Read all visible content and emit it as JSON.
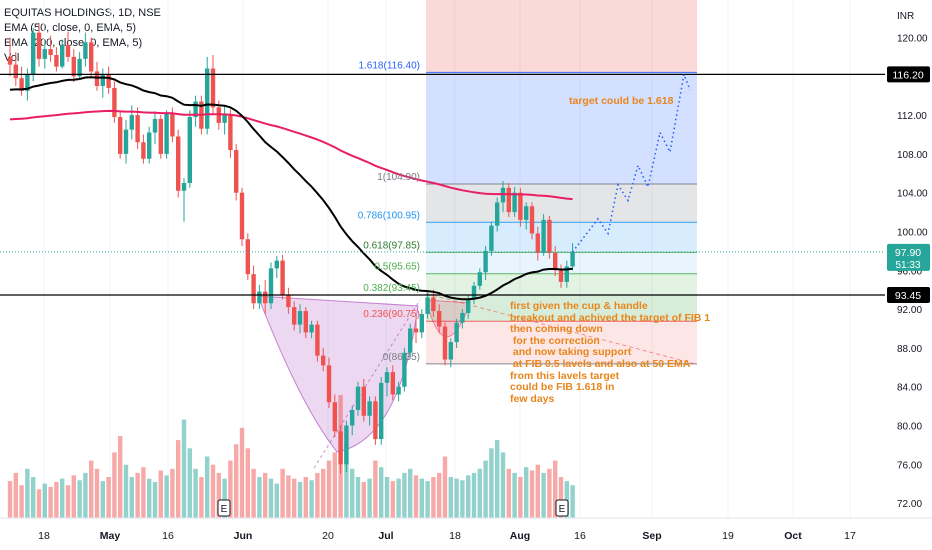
{
  "legend": {
    "symbol": "EQUITAS HOLDINGS, 1D, NSE",
    "ema50": "EMA (50, close, 0, EMA, 5)",
    "ema200": "EMA (200, close, 0, EMA, 5)",
    "vol": "Vol"
  },
  "axis": {
    "currency": "INR",
    "y_ticks": [
      "120.00",
      "116.00",
      "112.00",
      "108.00",
      "104.00",
      "100.00",
      "96.00",
      "92.00",
      "88.00",
      "84.00",
      "80.00",
      "76.00",
      "72.00"
    ],
    "x_ticks": [
      "18",
      "May",
      "16",
      "Jun",
      "20",
      "Jul",
      "18",
      "Aug",
      "16",
      "Sep",
      "19",
      "Oct",
      "17"
    ]
  },
  "price_tags": {
    "resistance": "116.20",
    "last": "97.90",
    "countdown": "51:33",
    "support": "93.45"
  },
  "fib_labels": {
    "f1618": "1.618(116.40)",
    "f1": "1(104.90)",
    "f786": "0.786(100.95)",
    "f618": "0.618(97.85)",
    "f5": "0.5(95.65)",
    "f382": "0.382(93.45)",
    "f236": "0.236(90.75)",
    "f0": "0(86.35)"
  },
  "annotations": {
    "target": "target could be 1.618",
    "note_lines": [
      "first given the cup & handle",
      "breakout and achived the target of FIB 1",
      "then coming down",
      " for the correction",
      " and now taking support",
      " at FIB 0.5 lavels and also at 50 EMA",
      "from this lavels target",
      "could be FIB 1.618 in",
      "few days"
    ]
  },
  "earnings_marker": "E",
  "colors": {
    "up": "#26a69a",
    "down": "#ef5350",
    "ema50": "#000000",
    "ema200": "#e91e63",
    "annotation": "#e8851b",
    "last_price": "#26a69a"
  },
  "chart_data": {
    "type": "candlestick",
    "title": "EQUITAS HOLDINGS, 1D, NSE",
    "ylabel": "INR",
    "ylim": [
      70.5,
      122.5
    ],
    "horizontal_lines": [
      116.2,
      93.45
    ],
    "fibonacci": {
      "levels": [
        {
          "ratio": 1.618,
          "price": 116.4
        },
        {
          "ratio": 1,
          "price": 104.9
        },
        {
          "ratio": 0.786,
          "price": 100.95
        },
        {
          "ratio": 0.618,
          "price": 97.85
        },
        {
          "ratio": 0.5,
          "price": 95.65
        },
        {
          "ratio": 0.382,
          "price": 93.45
        },
        {
          "ratio": 0.236,
          "price": 90.75
        },
        {
          "ratio": 0,
          "price": 86.35
        }
      ]
    },
    "last_price": 97.9,
    "candles": [
      {
        "o": 118.0,
        "h": 120.0,
        "l": 116.0,
        "c": 117.2
      },
      {
        "o": 117.2,
        "h": 118.5,
        "l": 115.0,
        "c": 115.8
      },
      {
        "o": 115.8,
        "h": 117.0,
        "l": 114.0,
        "c": 114.5
      },
      {
        "o": 114.5,
        "h": 116.8,
        "l": 113.5,
        "c": 116.2
      },
      {
        "o": 116.2,
        "h": 121.0,
        "l": 115.5,
        "c": 120.5
      },
      {
        "o": 120.5,
        "h": 121.5,
        "l": 117.0,
        "c": 117.8
      },
      {
        "o": 117.8,
        "h": 119.5,
        "l": 116.8,
        "c": 118.8
      },
      {
        "o": 118.8,
        "h": 120.2,
        "l": 117.5,
        "c": 118.2
      },
      {
        "o": 118.2,
        "h": 119.0,
        "l": 116.5,
        "c": 117.0
      },
      {
        "o": 117.0,
        "h": 119.8,
        "l": 116.8,
        "c": 119.2
      },
      {
        "o": 119.2,
        "h": 120.6,
        "l": 117.5,
        "c": 118.0
      },
      {
        "o": 118.0,
        "h": 118.8,
        "l": 115.4,
        "c": 116.0
      },
      {
        "o": 116.0,
        "h": 118.5,
        "l": 115.8,
        "c": 117.8
      },
      {
        "o": 117.8,
        "h": 120.5,
        "l": 117.0,
        "c": 119.5
      },
      {
        "o": 119.5,
        "h": 120.0,
        "l": 116.0,
        "c": 116.5
      },
      {
        "o": 116.5,
        "h": 117.5,
        "l": 114.5,
        "c": 115.0
      },
      {
        "o": 115.0,
        "h": 116.8,
        "l": 113.8,
        "c": 116.2
      },
      {
        "o": 116.2,
        "h": 117.0,
        "l": 114.2,
        "c": 114.8
      },
      {
        "o": 114.8,
        "h": 115.5,
        "l": 111.2,
        "c": 111.8
      },
      {
        "o": 111.8,
        "h": 112.5,
        "l": 107.5,
        "c": 108.0
      },
      {
        "o": 108.0,
        "h": 111.5,
        "l": 107.0,
        "c": 110.5
      },
      {
        "o": 110.5,
        "h": 113.0,
        "l": 109.5,
        "c": 112.0
      },
      {
        "o": 112.0,
        "h": 112.8,
        "l": 108.5,
        "c": 109.2
      },
      {
        "o": 109.2,
        "h": 110.0,
        "l": 107.0,
        "c": 107.5
      },
      {
        "o": 107.5,
        "h": 110.8,
        "l": 107.0,
        "c": 110.2
      },
      {
        "o": 110.2,
        "h": 112.4,
        "l": 109.0,
        "c": 111.6
      },
      {
        "o": 111.6,
        "h": 112.0,
        "l": 107.5,
        "c": 108.0
      },
      {
        "o": 108.0,
        "h": 112.5,
        "l": 107.5,
        "c": 112.2
      },
      {
        "o": 112.2,
        "h": 112.8,
        "l": 109.2,
        "c": 109.8
      },
      {
        "o": 109.8,
        "h": 110.5,
        "l": 103.5,
        "c": 104.2
      },
      {
        "o": 104.2,
        "h": 105.5,
        "l": 101.0,
        "c": 105.0
      },
      {
        "o": 105.0,
        "h": 112.5,
        "l": 104.5,
        "c": 111.8
      },
      {
        "o": 111.8,
        "h": 114.0,
        "l": 110.8,
        "c": 113.4
      },
      {
        "o": 113.4,
        "h": 114.0,
        "l": 110.0,
        "c": 110.6
      },
      {
        "o": 110.6,
        "h": 118.0,
        "l": 110.0,
        "c": 116.8
      },
      {
        "o": 116.8,
        "h": 118.2,
        "l": 112.0,
        "c": 112.8
      },
      {
        "o": 112.8,
        "h": 113.5,
        "l": 110.5,
        "c": 111.2
      },
      {
        "o": 111.2,
        "h": 113.0,
        "l": 110.0,
        "c": 112.0
      },
      {
        "o": 112.0,
        "h": 112.6,
        "l": 107.6,
        "c": 108.4
      },
      {
        "o": 108.4,
        "h": 109.0,
        "l": 103.2,
        "c": 104.0
      },
      {
        "o": 104.0,
        "h": 104.5,
        "l": 98.5,
        "c": 99.2
      },
      {
        "o": 99.2,
        "h": 99.8,
        "l": 95.0,
        "c": 95.6
      },
      {
        "o": 95.6,
        "h": 96.5,
        "l": 92.0,
        "c": 92.6
      },
      {
        "o": 92.6,
        "h": 94.5,
        "l": 92.0,
        "c": 93.8
      },
      {
        "o": 93.8,
        "h": 95.0,
        "l": 91.5,
        "c": 92.6
      },
      {
        "o": 92.6,
        "h": 96.8,
        "l": 92.0,
        "c": 96.2
      },
      {
        "o": 96.2,
        "h": 97.5,
        "l": 95.2,
        "c": 97.0
      },
      {
        "o": 97.0,
        "h": 97.6,
        "l": 93.0,
        "c": 93.4
      },
      {
        "o": 93.4,
        "h": 94.2,
        "l": 91.5,
        "c": 92.2
      },
      {
        "o": 92.2,
        "h": 92.8,
        "l": 89.8,
        "c": 90.4
      },
      {
        "o": 90.4,
        "h": 92.5,
        "l": 89.5,
        "c": 91.8
      },
      {
        "o": 91.8,
        "h": 92.2,
        "l": 89.0,
        "c": 89.6
      },
      {
        "o": 89.6,
        "h": 90.8,
        "l": 89.0,
        "c": 90.4
      },
      {
        "o": 90.4,
        "h": 90.8,
        "l": 86.6,
        "c": 87.2
      },
      {
        "o": 87.2,
        "h": 88.0,
        "l": 85.6,
        "c": 86.2
      },
      {
        "o": 86.2,
        "h": 87.0,
        "l": 81.8,
        "c": 82.4
      },
      {
        "o": 82.4,
        "h": 83.2,
        "l": 78.8,
        "c": 79.4
      },
      {
        "o": 79.4,
        "h": 80.0,
        "l": 75.0,
        "c": 76.0
      },
      {
        "o": 76.0,
        "h": 80.5,
        "l": 75.2,
        "c": 80.0
      },
      {
        "o": 80.0,
        "h": 82.0,
        "l": 79.0,
        "c": 81.6
      },
      {
        "o": 81.6,
        "h": 84.5,
        "l": 81.0,
        "c": 84.0
      },
      {
        "o": 84.0,
        "h": 84.8,
        "l": 80.4,
        "c": 81.0
      },
      {
        "o": 81.0,
        "h": 83.0,
        "l": 80.0,
        "c": 82.5
      },
      {
        "o": 82.5,
        "h": 83.0,
        "l": 78.0,
        "c": 78.6
      },
      {
        "o": 78.6,
        "h": 85.0,
        "l": 78.0,
        "c": 84.4
      },
      {
        "o": 84.4,
        "h": 86.0,
        "l": 83.0,
        "c": 85.5
      },
      {
        "o": 85.5,
        "h": 86.2,
        "l": 82.6,
        "c": 83.2
      },
      {
        "o": 83.2,
        "h": 84.5,
        "l": 82.5,
        "c": 84.0
      },
      {
        "o": 84.0,
        "h": 88.0,
        "l": 83.5,
        "c": 87.5
      },
      {
        "o": 87.5,
        "h": 90.5,
        "l": 87.0,
        "c": 90.0
      },
      {
        "o": 90.0,
        "h": 91.0,
        "l": 88.5,
        "c": 89.6
      },
      {
        "o": 89.6,
        "h": 92.0,
        "l": 89.0,
        "c": 91.5
      },
      {
        "o": 91.5,
        "h": 93.8,
        "l": 91.0,
        "c": 93.2
      },
      {
        "o": 93.2,
        "h": 94.0,
        "l": 91.2,
        "c": 91.8
      },
      {
        "o": 91.8,
        "h": 92.5,
        "l": 89.5,
        "c": 90.2
      },
      {
        "o": 90.2,
        "h": 90.6,
        "l": 86.2,
        "c": 86.8
      },
      {
        "o": 86.8,
        "h": 89.0,
        "l": 86.0,
        "c": 88.6
      },
      {
        "o": 88.6,
        "h": 91.0,
        "l": 88.0,
        "c": 90.6
      },
      {
        "o": 90.6,
        "h": 92.0,
        "l": 90.0,
        "c": 91.6
      },
      {
        "o": 91.6,
        "h": 93.5,
        "l": 91.0,
        "c": 93.0
      },
      {
        "o": 93.0,
        "h": 94.8,
        "l": 92.5,
        "c": 94.4
      },
      {
        "o": 94.4,
        "h": 96.2,
        "l": 94.0,
        "c": 95.8
      },
      {
        "o": 95.8,
        "h": 98.5,
        "l": 95.0,
        "c": 98.0
      },
      {
        "o": 98.0,
        "h": 101.0,
        "l": 97.5,
        "c": 100.6
      },
      {
        "o": 100.6,
        "h": 103.5,
        "l": 100.0,
        "c": 103.0
      },
      {
        "o": 103.0,
        "h": 105.2,
        "l": 102.0,
        "c": 104.5
      },
      {
        "o": 104.5,
        "h": 105.0,
        "l": 101.5,
        "c": 102.0
      },
      {
        "o": 102.0,
        "h": 104.6,
        "l": 101.5,
        "c": 104.0
      },
      {
        "o": 104.0,
        "h": 104.5,
        "l": 100.5,
        "c": 101.2
      },
      {
        "o": 101.2,
        "h": 103.0,
        "l": 100.2,
        "c": 102.6
      },
      {
        "o": 102.6,
        "h": 103.0,
        "l": 99.2,
        "c": 99.8
      },
      {
        "o": 99.8,
        "h": 100.5,
        "l": 97.0,
        "c": 97.8
      },
      {
        "o": 97.8,
        "h": 101.8,
        "l": 97.5,
        "c": 101.2
      },
      {
        "o": 101.2,
        "h": 101.6,
        "l": 97.2,
        "c": 97.8
      },
      {
        "o": 97.8,
        "h": 98.5,
        "l": 95.4,
        "c": 96.0
      },
      {
        "o": 96.0,
        "h": 96.6,
        "l": 94.2,
        "c": 94.8
      },
      {
        "o": 94.8,
        "h": 97.0,
        "l": 94.2,
        "c": 96.4
      },
      {
        "o": 96.4,
        "h": 98.8,
        "l": 96.0,
        "c": 97.9
      }
    ],
    "volumes": [
      45,
      55,
      40,
      60,
      50,
      35,
      42,
      38,
      44,
      48,
      40,
      52,
      46,
      55,
      70,
      60,
      45,
      50,
      80,
      100,
      65,
      50,
      55,
      62,
      48,
      44,
      58,
      52,
      60,
      95,
      120,
      85,
      60,
      50,
      75,
      65,
      55,
      48,
      70,
      90,
      110,
      85,
      60,
      50,
      55,
      48,
      42,
      60,
      52,
      48,
      44,
      50,
      46,
      55,
      60,
      70,
      80,
      150,
      90,
      60,
      50,
      44,
      48,
      70,
      62,
      50,
      45,
      48,
      55,
      60,
      52,
      48,
      45,
      50,
      55,
      75,
      50,
      48,
      46,
      52,
      55,
      60,
      70,
      85,
      95,
      80,
      60,
      55,
      50,
      62,
      58,
      65,
      55,
      60,
      70,
      50,
      45,
      40
    ]
  }
}
